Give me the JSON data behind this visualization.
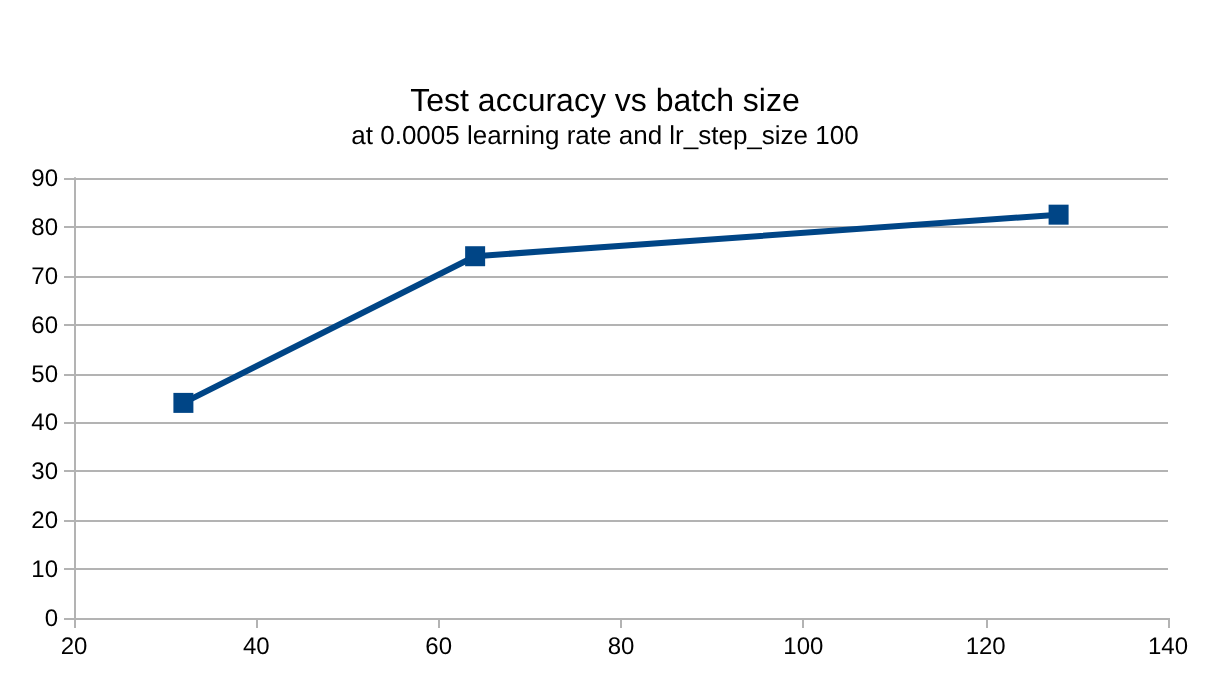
{
  "chart_data": {
    "type": "line",
    "title": "Test accuracy vs batch size",
    "subtitle": "at 0.0005 learning rate and lr_step_size 100",
    "x": [
      32,
      64,
      128
    ],
    "series": [
      {
        "color": "#004586",
        "values": [
          44,
          74,
          82.5
        ]
      }
    ],
    "xlim": [
      20,
      140
    ],
    "xticks": [
      20,
      40,
      60,
      80,
      100,
      120,
      140
    ],
    "ylim": [
      0,
      90
    ],
    "yticks": [
      0,
      10,
      20,
      30,
      40,
      50,
      60,
      70,
      80,
      90
    ],
    "grid": "y",
    "marker": "square",
    "line_style": "solid"
  }
}
